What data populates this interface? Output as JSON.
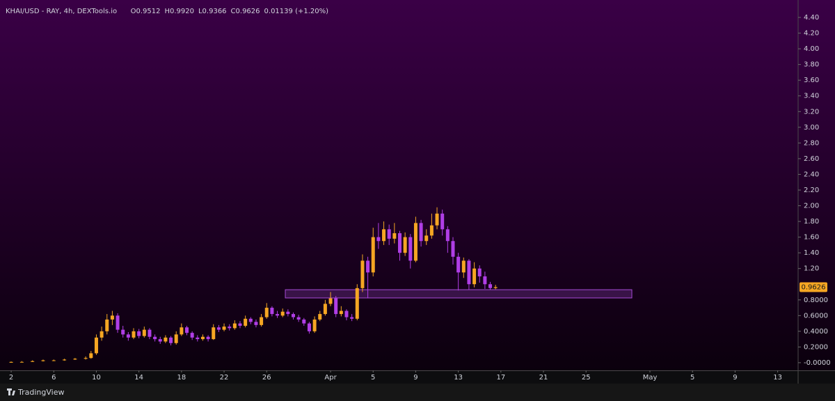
{
  "chart_data": {
    "type": "candlestick",
    "symbol": "KHAI/USD - RAY, 4h, DEXTools.io",
    "ohlc_labels": [
      "O0.9512",
      "H0.9920",
      "L0.9366",
      "C0.9626",
      "0.01139 (+1.20%)"
    ],
    "footer": "TradingView",
    "up_color": "#f5a623",
    "down_color": "#b03ee6",
    "x": [
      2,
      3,
      4,
      5,
      6,
      7,
      8,
      9,
      9.5,
      10,
      10.5,
      11,
      11.5,
      12,
      12.5,
      13,
      13.5,
      14,
      14.5,
      15,
      15.5,
      16,
      16.5,
      17,
      17.5,
      18,
      18.5,
      19,
      19.5,
      20,
      20.5,
      21,
      21.5,
      22,
      22.5,
      23,
      23.5,
      24,
      24.5,
      25,
      25.5,
      26,
      26.5,
      27,
      27.5,
      28,
      28.5,
      29,
      29.5,
      30,
      30.5,
      31,
      31.5,
      32,
      32.5,
      33,
      33.5,
      34,
      34.5,
      35,
      35.5,
      36,
      36.5,
      37,
      37.5,
      38,
      38.5,
      39,
      39.5,
      40,
      40.5,
      41,
      41.5,
      42,
      42.5,
      43,
      43.5,
      44,
      44.5,
      45,
      45.5,
      46,
      46.5,
      47,
      47.5
    ],
    "open": [
      0,
      0.01,
      0.01,
      0.02,
      0.03,
      0.03,
      0.04,
      0.05,
      0.06,
      0.12,
      0.32,
      0.4,
      0.55,
      0.6,
      0.42,
      0.36,
      0.32,
      0.4,
      0.34,
      0.42,
      0.33,
      0.3,
      0.27,
      0.32,
      0.25,
      0.36,
      0.45,
      0.38,
      0.32,
      0.3,
      0.33,
      0.3,
      0.45,
      0.42,
      0.46,
      0.44,
      0.5,
      0.47,
      0.56,
      0.52,
      0.48,
      0.58,
      0.7,
      0.62,
      0.6,
      0.65,
      0.62,
      0.58,
      0.55,
      0.5,
      0.4,
      0.55,
      0.62,
      0.75,
      0.82,
      0.62,
      0.66,
      0.58,
      0.56,
      0.95,
      1.3,
      1.15,
      1.6,
      1.55,
      1.7,
      1.58,
      1.65,
      1.4,
      1.6,
      1.3,
      1.78,
      1.55,
      1.62,
      1.75,
      1.9,
      1.7,
      1.55,
      1.35,
      1.15,
      1.3,
      1.0,
      1.2,
      1.1,
      1.0,
      0.9512
    ],
    "high": [
      0.015,
      0.02,
      0.03,
      0.04,
      0.04,
      0.05,
      0.06,
      0.08,
      0.15,
      0.36,
      0.46,
      0.62,
      0.66,
      0.63,
      0.47,
      0.39,
      0.44,
      0.43,
      0.46,
      0.44,
      0.36,
      0.33,
      0.35,
      0.34,
      0.4,
      0.5,
      0.47,
      0.4,
      0.35,
      0.36,
      0.35,
      0.49,
      0.48,
      0.5,
      0.49,
      0.54,
      0.53,
      0.6,
      0.58,
      0.55,
      0.62,
      0.76,
      0.72,
      0.66,
      0.69,
      0.68,
      0.64,
      0.61,
      0.57,
      0.52,
      0.59,
      0.66,
      0.8,
      0.9,
      0.85,
      0.72,
      0.68,
      0.62,
      1.0,
      1.38,
      1.35,
      1.72,
      1.78,
      1.8,
      1.76,
      1.78,
      1.68,
      1.66,
      1.64,
      1.86,
      1.82,
      1.7,
      1.9,
      1.98,
      1.95,
      1.74,
      1.6,
      1.4,
      1.34,
      1.32,
      1.28,
      1.24,
      1.16,
      1.03,
      0.992
    ],
    "low": [
      0,
      0.005,
      0.01,
      0.015,
      0.02,
      0.025,
      0.035,
      0.04,
      0.05,
      0.1,
      0.28,
      0.36,
      0.48,
      0.38,
      0.32,
      0.28,
      0.3,
      0.31,
      0.32,
      0.3,
      0.27,
      0.24,
      0.25,
      0.22,
      0.23,
      0.34,
      0.35,
      0.29,
      0.27,
      0.28,
      0.27,
      0.29,
      0.39,
      0.4,
      0.41,
      0.42,
      0.44,
      0.45,
      0.49,
      0.45,
      0.46,
      0.56,
      0.59,
      0.57,
      0.58,
      0.59,
      0.55,
      0.52,
      0.47,
      0.37,
      0.38,
      0.53,
      0.6,
      0.72,
      0.58,
      0.59,
      0.54,
      0.53,
      0.54,
      0.9,
      0.82,
      1.1,
      1.45,
      1.5,
      1.5,
      1.52,
      1.3,
      1.36,
      1.2,
      1.28,
      1.48,
      1.5,
      1.58,
      1.7,
      1.62,
      1.4,
      1.25,
      0.92,
      1.08,
      0.93,
      0.96,
      1.02,
      0.94,
      0.93,
      0.9366
    ],
    "close": [
      0.01,
      0.01,
      0.02,
      0.03,
      0.03,
      0.04,
      0.05,
      0.06,
      0.12,
      0.32,
      0.4,
      0.55,
      0.6,
      0.42,
      0.36,
      0.32,
      0.4,
      0.34,
      0.42,
      0.33,
      0.3,
      0.27,
      0.32,
      0.25,
      0.36,
      0.45,
      0.38,
      0.32,
      0.3,
      0.33,
      0.3,
      0.45,
      0.42,
      0.46,
      0.44,
      0.5,
      0.47,
      0.56,
      0.52,
      0.48,
      0.58,
      0.7,
      0.62,
      0.6,
      0.65,
      0.62,
      0.58,
      0.55,
      0.5,
      0.4,
      0.55,
      0.62,
      0.75,
      0.82,
      0.62,
      0.66,
      0.58,
      0.56,
      0.95,
      1.3,
      1.15,
      1.6,
      1.55,
      1.7,
      1.58,
      1.65,
      1.4,
      1.6,
      1.3,
      1.78,
      1.55,
      1.62,
      1.75,
      1.9,
      1.7,
      1.55,
      1.35,
      1.15,
      1.3,
      1.0,
      1.2,
      1.1,
      1.0,
      0.9512,
      0.9626
    ],
    "last_price": 0.9626,
    "zone": {
      "x": [
        27.75,
        60.3
      ],
      "y": [
        0.825,
        0.93
      ],
      "color": "#a64bd6"
    },
    "xlim": [
      0.95,
      75.92
    ],
    "ylim": [
      -0.098,
      4.622
    ],
    "xticks": [
      2,
      6,
      10,
      14,
      18,
      22,
      26,
      {
        "value": 32,
        "label": "Apr"
      },
      {
        "value": 36,
        "label": "5"
      },
      {
        "value": 40,
        "label": "9"
      },
      {
        "value": 44,
        "label": "13"
      },
      {
        "value": 48,
        "label": "17"
      },
      {
        "value": 52,
        "label": "21"
      },
      {
        "value": 56,
        "label": "25"
      },
      {
        "value": 62,
        "label": "May"
      },
      {
        "value": 66,
        "label": "5"
      },
      {
        "value": 70,
        "label": "9"
      },
      {
        "value": 74,
        "label": "13"
      }
    ],
    "yticks": [
      {
        "value": 0,
        "label": "-0.0000"
      },
      {
        "value": 0.2,
        "label": "0.2000"
      },
      {
        "value": 0.4,
        "label": "0.4000"
      },
      {
        "value": 0.6,
        "label": "0.6000"
      },
      {
        "value": 0.8,
        "label": "0.8000"
      },
      {
        "value": 1.2,
        "label": "1.20"
      },
      {
        "value": 1.4,
        "label": "1.40"
      },
      {
        "value": 1.6,
        "label": "1.60"
      },
      {
        "value": 1.8,
        "label": "1.80"
      },
      {
        "value": 2.0,
        "label": "2.00"
      },
      {
        "value": 2.2,
        "label": "2.20"
      },
      {
        "value": 2.4,
        "label": "2.40"
      },
      {
        "value": 2.6,
        "label": "2.60"
      },
      {
        "value": 2.8,
        "label": "2.80"
      },
      {
        "value": 3.0,
        "label": "3.00"
      },
      {
        "value": 3.2,
        "label": "3.20"
      },
      {
        "value": 3.4,
        "label": "3.40"
      },
      {
        "value": 3.6,
        "label": "3.60"
      },
      {
        "value": 3.8,
        "label": "3.80"
      },
      {
        "value": 4.0,
        "label": "4.00"
      },
      {
        "value": 4.2,
        "label": "4.20"
      },
      {
        "value": 4.4,
        "label": "4.40"
      }
    ]
  }
}
